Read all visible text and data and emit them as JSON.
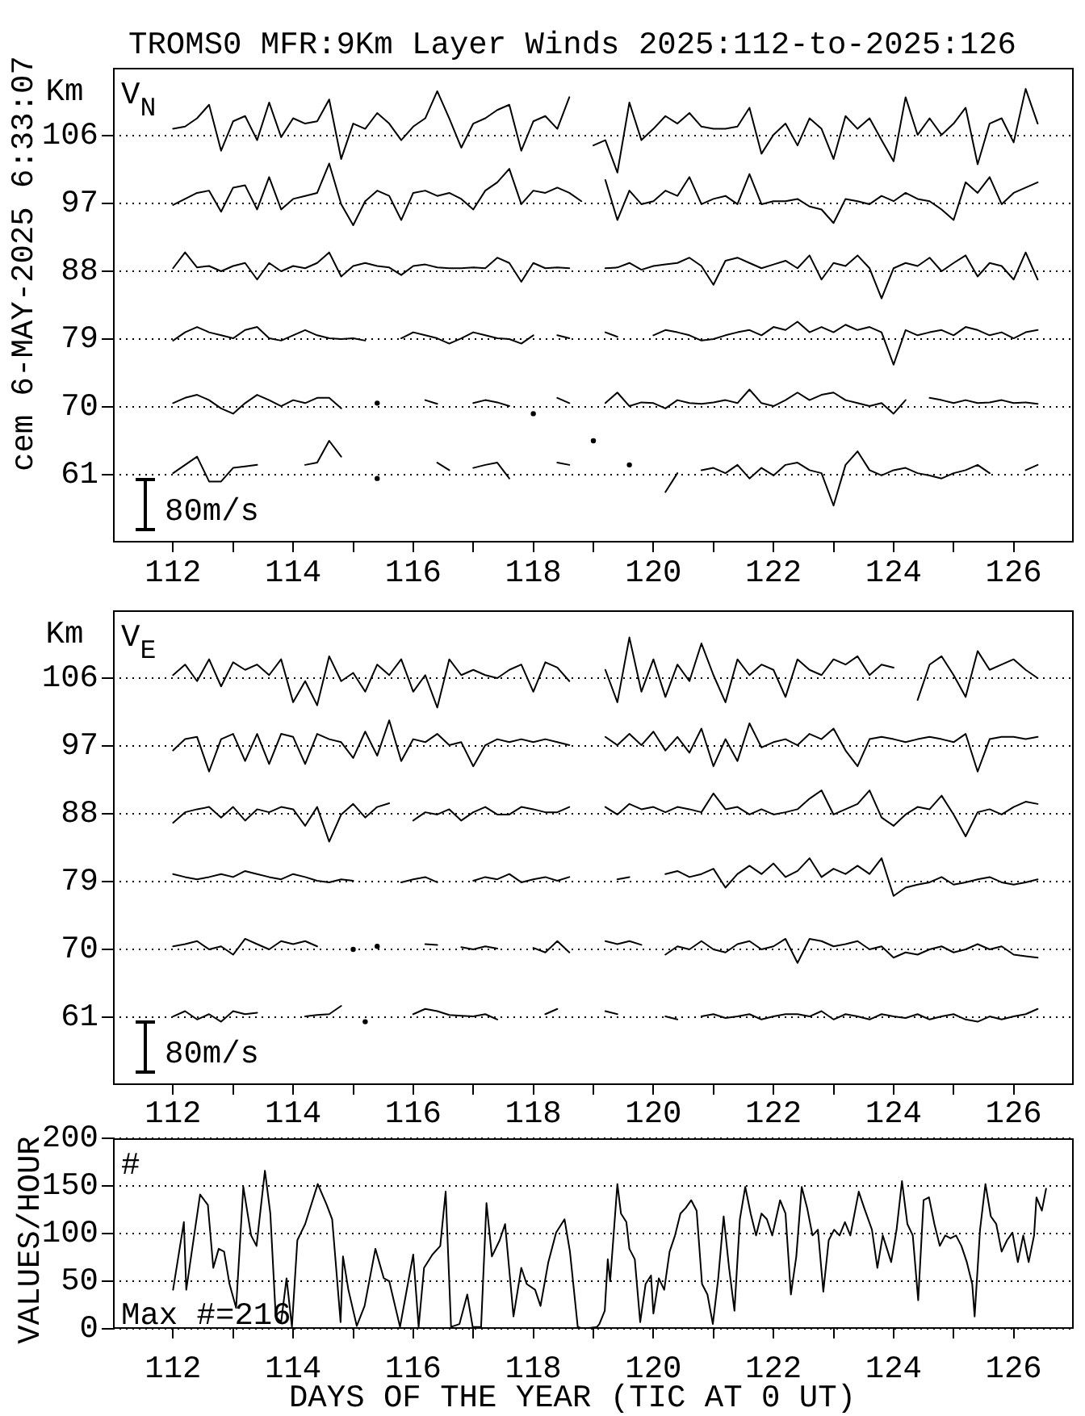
{
  "chart_data": [
    {
      "type": "line",
      "title": "TROMS0 MFR:9Km Layer Winds 2025:112-to-2025:126",
      "ylabel": "Km",
      "annotations": [
        "V$_{N}$",
        "80m/s",
        "cem 6-MAY-2025 6:33:07"
      ],
      "x": [
        112,
        112.2,
        112.4,
        112.6,
        112.8,
        113,
        113.2,
        113.4,
        113.6,
        113.8,
        114,
        114.2,
        114.4,
        114.6,
        114.8,
        115,
        115.2,
        115.4,
        115.6,
        115.8,
        116,
        116.2,
        116.4,
        116.6,
        116.8,
        117,
        117.2,
        117.4,
        117.6,
        117.8,
        118,
        118.2,
        118.4,
        118.6,
        118.8,
        119,
        119.2,
        119.4,
        119.6,
        119.8,
        120,
        120.2,
        120.4,
        120.6,
        120.8,
        121,
        121.2,
        121.4,
        121.6,
        121.8,
        122,
        122.2,
        122.4,
        122.6,
        122.8,
        123,
        123.2,
        123.4,
        123.6,
        123.8,
        124,
        124.2,
        124.4,
        124.6,
        124.8,
        125,
        125.2,
        125.4,
        125.6,
        125.8,
        126,
        126.2,
        126.4
      ],
      "xlim": [
        111,
        127
      ],
      "xticks": [
        112,
        {
          "value": 113,
          "label": null
        },
        114,
        {
          "value": 115,
          "label": null
        },
        116,
        {
          "value": 117,
          "label": null
        },
        118,
        {
          "value": 119,
          "label": null
        },
        120,
        {
          "value": 121,
          "label": null
        },
        122,
        {
          "value": 123,
          "label": null
        },
        124,
        {
          "value": 125,
          "label": null
        },
        126
      ],
      "ylim": [
        52,
        115
      ],
      "yticks": [
        61,
        70,
        79,
        88,
        97,
        106
      ],
      "grid": "y",
      "series": [
        {
          "color": "#000000",
          "values": [
            106.9,
            107.2,
            108.3,
            110.1,
            104.0,
            107.9,
            108.6,
            105.4,
            110.4,
            105.8,
            108.3,
            107.6,
            107.9,
            110.8,
            102.9,
            107.6,
            106.9,
            109.0,
            107.6,
            105.4,
            107.2,
            108.3,
            111.9,
            108.3,
            104.4,
            107.6,
            108.3,
            109.4,
            110.1,
            104.0,
            107.9,
            108.6,
            106.9,
            111.1,
            null,
            104.7,
            105.4,
            101.1,
            110.4,
            105.4,
            106.9,
            108.6,
            107.6,
            109.0,
            107.2,
            106.9,
            106.9,
            107.2,
            109.7,
            103.6,
            106.1,
            107.6,
            104.7,
            108.3,
            106.9,
            102.9,
            108.6,
            106.9,
            108.3,
            105.4,
            102.6,
            111.1,
            106.1,
            108.3,
            106.1,
            107.6,
            109.7,
            102.2,
            107.6,
            108.3,
            105.1,
            112.2,
            107.6
          ]
        },
        {
          "color": "#000000",
          "values": [
            96.8,
            97.6,
            98.4,
            98.7,
            95.9,
            99.1,
            99.4,
            96.2,
            100.5,
            96.2,
            97.6,
            98.0,
            98.4,
            102.3,
            96.9,
            94.1,
            97.3,
            98.7,
            98.0,
            94.8,
            98.4,
            98.7,
            98.0,
            98.4,
            97.6,
            96.2,
            98.7,
            99.8,
            101.6,
            96.9,
            98.7,
            98.4,
            99.1,
            98.4,
            97.3,
            null,
            100.1,
            94.8,
            98.7,
            96.9,
            97.3,
            98.7,
            98.0,
            100.5,
            96.9,
            97.6,
            98.0,
            96.9,
            100.9,
            96.9,
            97.3,
            97.3,
            97.6,
            96.6,
            96.2,
            94.4,
            97.6,
            97.3,
            96.9,
            98.0,
            97.3,
            98.4,
            97.6,
            97.3,
            96.2,
            94.8,
            99.8,
            98.4,
            100.5,
            96.9,
            98.4,
            99.1,
            99.8
          ]
        },
        {
          "color": "#000000",
          "values": [
            88.4,
            90.5,
            88.5,
            88.7,
            88.0,
            88.7,
            89.1,
            86.9,
            89.1,
            88.0,
            88.7,
            88.4,
            89.1,
            90.5,
            87.3,
            88.7,
            89.1,
            88.7,
            88.5,
            87.5,
            88.7,
            88.9,
            88.5,
            88.4,
            88.4,
            88.5,
            88.4,
            89.8,
            89.1,
            86.6,
            89.1,
            88.4,
            88.5,
            88.4,
            null,
            null,
            88.4,
            88.5,
            89.1,
            88.2,
            88.7,
            88.9,
            89.1,
            89.8,
            88.7,
            86.2,
            89.4,
            89.8,
            89.1,
            88.4,
            88.9,
            89.4,
            88.4,
            90.1,
            86.9,
            89.1,
            88.7,
            90.1,
            88.4,
            84.4,
            88.4,
            89.1,
            88.7,
            89.8,
            88.0,
            89.1,
            90.1,
            87.3,
            89.1,
            88.7,
            86.9,
            90.5,
            86.9
          ]
        },
        {
          "color": "#000000",
          "values": [
            78.8,
            79.9,
            80.6,
            79.9,
            79.5,
            79.1,
            80.2,
            80.6,
            79.1,
            78.8,
            79.5,
            80.2,
            79.5,
            79.1,
            79.0,
            79.1,
            78.8,
            null,
            null,
            79.1,
            79.9,
            79.5,
            79.1,
            78.4,
            79.1,
            79.9,
            79.5,
            79.1,
            79.0,
            78.4,
            79.5,
            null,
            79.5,
            79.1,
            null,
            null,
            79.9,
            79.3,
            null,
            null,
            79.5,
            80.2,
            79.9,
            79.5,
            78.8,
            79.0,
            79.5,
            79.9,
            80.2,
            79.5,
            80.6,
            80.2,
            81.3,
            79.9,
            80.6,
            79.9,
            80.9,
            80.2,
            80.6,
            79.9,
            75.6,
            80.2,
            79.5,
            79.9,
            80.2,
            79.5,
            80.6,
            80.2,
            79.5,
            79.9,
            79.1,
            79.9,
            80.2
          ]
        },
        {
          "color": "#000000",
          "values": [
            70.5,
            71.2,
            71.6,
            70.9,
            69.8,
            69.1,
            70.5,
            71.6,
            70.9,
            70.1,
            70.9,
            70.5,
            71.2,
            71.2,
            69.8,
            null,
            null,
            70.5,
            null,
            null,
            null,
            70.9,
            70.4,
            null,
            null,
            70.5,
            70.9,
            70.6,
            70.1,
            null,
            69.1,
            null,
            71.2,
            70.5,
            null,
            null,
            70.5,
            71.9,
            70.1,
            70.6,
            70.5,
            69.8,
            70.9,
            70.5,
            70.4,
            70.6,
            70.9,
            70.5,
            72.3,
            70.5,
            70.1,
            70.9,
            71.9,
            70.9,
            71.6,
            71.9,
            70.9,
            70.5,
            70.1,
            70.5,
            69.1,
            70.9,
            null,
            71.2,
            70.9,
            70.5,
            70.9,
            70.5,
            70.6,
            70.9,
            70.5,
            70.6,
            70.4
          ]
        },
        {
          "color": "#000000",
          "values": [
            61.2,
            62.3,
            63.4,
            60.1,
            60.1,
            61.9,
            62.1,
            62.3,
            null,
            null,
            null,
            62.3,
            62.6,
            65.5,
            63.4,
            null,
            null,
            60.5,
            null,
            null,
            null,
            null,
            62.6,
            61.6,
            null,
            61.9,
            62.3,
            62.6,
            60.5,
            null,
            null,
            null,
            62.6,
            62.3,
            null,
            65.5,
            null,
            null,
            62.3,
            null,
            null,
            58.7,
            61.2,
            null,
            61.6,
            61.9,
            61.2,
            62.3,
            60.5,
            61.9,
            60.9,
            62.3,
            62.6,
            61.6,
            61.2,
            56.9,
            62.3,
            64.1,
            61.6,
            60.9,
            61.6,
            61.9,
            61.2,
            60.9,
            60.5,
            61.2,
            61.6,
            62.3,
            61.2,
            null,
            null,
            61.6,
            62.3
          ]
        }
      ]
    },
    {
      "type": "line",
      "ylabel": "Km",
      "annotations": [
        "V$_{E}$",
        "80m/s"
      ],
      "x": [
        112,
        112.2,
        112.4,
        112.6,
        112.8,
        113,
        113.2,
        113.4,
        113.6,
        113.8,
        114,
        114.2,
        114.4,
        114.6,
        114.8,
        115,
        115.2,
        115.4,
        115.6,
        115.8,
        116,
        116.2,
        116.4,
        116.6,
        116.8,
        117,
        117.2,
        117.4,
        117.6,
        117.8,
        118,
        118.2,
        118.4,
        118.6,
        118.8,
        119,
        119.2,
        119.4,
        119.6,
        119.8,
        120,
        120.2,
        120.4,
        120.6,
        120.8,
        121,
        121.2,
        121.4,
        121.6,
        121.8,
        122,
        122.2,
        122.4,
        122.6,
        122.8,
        123,
        123.2,
        123.4,
        123.6,
        123.8,
        124,
        124.2,
        124.4,
        124.6,
        124.8,
        125,
        125.2,
        125.4,
        125.6,
        125.8,
        126,
        126.2,
        126.4
      ],
      "xlim": [
        111,
        127
      ],
      "xticks": [
        112,
        {
          "value": 113,
          "label": null
        },
        114,
        {
          "value": 115,
          "label": null
        },
        116,
        {
          "value": 117,
          "label": null
        },
        118,
        {
          "value": 119,
          "label": null
        },
        120,
        {
          "value": 121,
          "label": null
        },
        122,
        {
          "value": 123,
          "label": null
        },
        124,
        {
          "value": 125,
          "label": null
        },
        126
      ],
      "ylim": [
        52,
        115
      ],
      "yticks": [
        61,
        70,
        79,
        88,
        97,
        106
      ],
      "grid": "y",
      "series": [
        {
          "color": "#000000",
          "values": [
            106.4,
            107.8,
            105.6,
            108.5,
            104.9,
            108.1,
            107.1,
            107.8,
            106.4,
            108.5,
            102.8,
            105.6,
            102.4,
            108.9,
            105.6,
            106.7,
            104.2,
            107.8,
            106.4,
            108.5,
            104.2,
            106.4,
            102.1,
            108.5,
            106.4,
            107.1,
            106.4,
            106.0,
            107.1,
            107.8,
            104.2,
            108.1,
            107.4,
            105.6,
            null,
            null,
            107.1,
            102.8,
            111.4,
            104.2,
            108.5,
            103.5,
            107.8,
            105.6,
            110.6,
            106.4,
            102.8,
            108.5,
            106.4,
            107.8,
            107.1,
            103.5,
            108.5,
            107.1,
            106.4,
            108.5,
            107.8,
            108.9,
            106.4,
            107.8,
            107.4,
            null,
            103.1,
            107.8,
            108.9,
            106.4,
            103.5,
            109.6,
            107.1,
            107.8,
            108.5,
            107.1,
            106.0
          ]
        },
        {
          "color": "#000000",
          "values": [
            96.4,
            97.9,
            98.2,
            93.6,
            97.9,
            98.6,
            95.0,
            98.6,
            94.6,
            98.6,
            98.2,
            94.6,
            98.6,
            97.9,
            97.5,
            95.4,
            98.9,
            95.7,
            100.4,
            95.0,
            97.9,
            97.5,
            98.6,
            97.1,
            97.5,
            94.3,
            97.1,
            97.9,
            97.5,
            97.9,
            97.5,
            97.9,
            97.5,
            97.1,
            null,
            null,
            98.2,
            97.1,
            98.6,
            97.1,
            98.9,
            96.4,
            98.2,
            96.1,
            99.3,
            94.3,
            97.9,
            95.0,
            100.0,
            96.8,
            97.5,
            97.9,
            97.1,
            98.6,
            97.9,
            99.3,
            96.4,
            94.3,
            97.9,
            98.2,
            97.9,
            97.5,
            97.9,
            98.2,
            97.9,
            97.5,
            98.6,
            93.6,
            97.9,
            98.2,
            98.2,
            97.9,
            98.2
          ]
        },
        {
          "color": "#000000",
          "values": [
            86.8,
            88.2,
            88.6,
            88.9,
            87.5,
            88.9,
            87.1,
            88.6,
            88.2,
            88.9,
            88.6,
            86.4,
            88.9,
            84.3,
            87.9,
            89.3,
            87.5,
            88.9,
            89.4,
            null,
            87.1,
            88.2,
            87.9,
            88.6,
            87.1,
            88.2,
            88.9,
            87.9,
            87.9,
            88.9,
            88.6,
            88.2,
            88.2,
            88.9,
            null,
            null,
            88.9,
            87.9,
            89.3,
            88.6,
            88.9,
            88.2,
            88.9,
            88.6,
            88.2,
            90.7,
            88.6,
            88.9,
            87.9,
            88.6,
            87.9,
            88.2,
            88.6,
            90.0,
            91.1,
            87.9,
            88.6,
            89.3,
            91.1,
            87.5,
            86.4,
            87.9,
            88.9,
            88.6,
            90.4,
            87.9,
            85.0,
            88.2,
            88.6,
            87.9,
            88.9,
            89.6,
            89.3
          ]
        },
        {
          "color": "#000000",
          "values": [
            80.0,
            79.6,
            79.3,
            79.6,
            80.0,
            79.6,
            80.4,
            80.0,
            79.6,
            79.3,
            80.0,
            79.6,
            79.1,
            78.9,
            79.3,
            79.1,
            null,
            null,
            null,
            78.9,
            79.3,
            79.6,
            78.9,
            null,
            null,
            79.1,
            79.6,
            79.3,
            80.0,
            78.9,
            79.3,
            79.6,
            79.1,
            79.6,
            null,
            null,
            null,
            79.3,
            79.6,
            null,
            null,
            80.0,
            80.4,
            79.6,
            80.0,
            80.7,
            78.2,
            80.0,
            81.1,
            80.0,
            81.4,
            79.6,
            80.4,
            82.1,
            79.6,
            80.7,
            80.0,
            81.1,
            80.0,
            82.1,
            77.1,
            78.2,
            78.6,
            78.9,
            79.6,
            78.6,
            78.9,
            79.3,
            79.6,
            78.9,
            78.6,
            78.9,
            79.3
          ]
        },
        {
          "color": "#000000",
          "values": [
            70.4,
            70.7,
            71.1,
            70.0,
            70.4,
            69.3,
            71.4,
            70.7,
            70.0,
            71.1,
            70.7,
            71.1,
            70.4,
            null,
            null,
            70.0,
            null,
            70.4,
            null,
            null,
            null,
            70.7,
            70.6,
            null,
            70.3,
            70.0,
            70.4,
            70.1,
            null,
            null,
            70.2,
            69.6,
            71.1,
            69.6,
            null,
            null,
            71.1,
            70.7,
            71.1,
            70.6,
            null,
            69.3,
            70.4,
            70.0,
            71.1,
            70.0,
            69.6,
            70.7,
            71.1,
            70.0,
            70.4,
            71.4,
            68.2,
            71.4,
            71.1,
            70.4,
            70.7,
            71.1,
            70.0,
            70.4,
            68.9,
            69.6,
            69.3,
            70.0,
            70.4,
            69.6,
            70.0,
            70.7,
            70.0,
            70.4,
            69.3,
            69.1,
            68.9
          ]
        },
        {
          "color": "#000000",
          "values": [
            61.1,
            61.8,
            60.7,
            61.4,
            60.4,
            61.8,
            61.4,
            61.6,
            null,
            null,
            null,
            61.1,
            61.3,
            61.4,
            62.5,
            null,
            60.4,
            null,
            null,
            null,
            61.4,
            62.1,
            61.8,
            61.3,
            61.2,
            61.1,
            61.4,
            60.7,
            null,
            null,
            null,
            61.4,
            62.1,
            null,
            null,
            null,
            61.8,
            61.4,
            null,
            null,
            null,
            61.1,
            60.7,
            null,
            61.1,
            61.4,
            60.9,
            61.1,
            61.4,
            60.7,
            61.1,
            61.4,
            61.4,
            61.1,
            61.8,
            60.7,
            61.4,
            61.1,
            60.7,
            61.4,
            61.1,
            60.9,
            61.4,
            60.7,
            61.1,
            61.4,
            60.7,
            60.4,
            61.1,
            60.7,
            61.1,
            61.4,
            62.1
          ]
        }
      ]
    },
    {
      "type": "line",
      "xlabel": "DAYS OF THE YEAR (TIC AT 0 UT)",
      "ylabel": "VALUES/HOUR",
      "annotations": [
        "#",
        "Max #=216"
      ],
      "x": [
        112.0,
        112.18,
        112.22,
        112.45,
        112.58,
        112.67,
        112.76,
        112.85,
        112.94,
        113.05,
        113.17,
        113.3,
        113.39,
        113.53,
        113.62,
        113.71,
        113.8,
        113.89,
        113.98,
        114.07,
        114.2,
        114.41,
        114.56,
        114.65,
        114.79,
        114.83,
        114.92,
        115.06,
        115.19,
        115.37,
        115.51,
        115.6,
        115.78,
        115.91,
        116.0,
        116.09,
        116.18,
        116.32,
        116.45,
        116.54,
        116.63,
        116.77,
        116.9,
        116.99,
        117.13,
        117.22,
        117.31,
        117.44,
        117.53,
        117.67,
        117.8,
        117.89,
        118.03,
        118.12,
        118.25,
        118.38,
        118.52,
        118.61,
        118.74,
        118.83,
        119.06,
        119.1,
        119.19,
        119.24,
        119.28,
        119.4,
        119.46,
        119.55,
        119.6,
        119.69,
        119.78,
        119.87,
        119.96,
        120.0,
        120.09,
        120.18,
        120.27,
        120.36,
        120.45,
        120.54,
        120.63,
        120.72,
        120.81,
        120.9,
        120.99,
        121.08,
        121.17,
        121.26,
        121.35,
        121.44,
        121.53,
        121.62,
        121.71,
        121.8,
        121.89,
        121.98,
        122.11,
        122.2,
        122.29,
        122.38,
        122.47,
        122.56,
        122.65,
        122.74,
        122.83,
        122.92,
        123.01,
        123.1,
        123.19,
        123.28,
        123.42,
        123.51,
        123.64,
        123.73,
        123.82,
        123.96,
        124.05,
        124.14,
        124.23,
        124.32,
        124.41,
        124.5,
        124.59,
        124.68,
        124.77,
        124.86,
        124.95,
        125.04,
        125.13,
        125.22,
        125.31,
        125.35,
        125.44,
        125.53,
        125.62,
        125.71,
        125.8,
        125.89,
        125.98,
        126.07,
        126.16,
        126.25,
        126.34,
        126.38,
        126.47,
        126.54
      ],
      "values": [
        41,
        112,
        41,
        141,
        130,
        64,
        84,
        81,
        47,
        22,
        149,
        98,
        87,
        166,
        121,
        13,
        7,
        53,
        2,
        93,
        110,
        152,
        130,
        115,
        7,
        76,
        41,
        3,
        24,
        84,
        53,
        50,
        2,
        47,
        78,
        2,
        64,
        78,
        87,
        144,
        2,
        5,
        36,
        2,
        2,
        132,
        76,
        93,
        110,
        13,
        64,
        47,
        41,
        24,
        70,
        101,
        115,
        81,
        2,
        0,
        2,
        5,
        19,
        73,
        50,
        152,
        121,
        112,
        84,
        73,
        7,
        47,
        56,
        16,
        53,
        41,
        81,
        98,
        121,
        127,
        135,
        124,
        47,
        36,
        5,
        53,
        118,
        64,
        19,
        115,
        149,
        121,
        98,
        121,
        115,
        98,
        135,
        121,
        36,
        76,
        149,
        127,
        98,
        104,
        39,
        93,
        104,
        98,
        112,
        98,
        144,
        127,
        104,
        64,
        98,
        70,
        104,
        155,
        110,
        98,
        30,
        135,
        138,
        110,
        87,
        98,
        95,
        98,
        87,
        70,
        47,
        13,
        104,
        152,
        118,
        110,
        81,
        93,
        101,
        70,
        98,
        70,
        98,
        138,
        124,
        147
      ],
      "color": "#000000",
      "xlim": [
        111,
        127
      ],
      "xticks": [
        112,
        {
          "value": 113,
          "label": null
        },
        114,
        {
          "value": 115,
          "label": null
        },
        116,
        {
          "value": 117,
          "label": null
        },
        118,
        {
          "value": 119,
          "label": null
        },
        120,
        {
          "value": 121,
          "label": null
        },
        122,
        {
          "value": 123,
          "label": null
        },
        124,
        {
          "value": 125,
          "label": null
        },
        126
      ],
      "ylim": [
        0,
        200
      ],
      "yticks": [
        0,
        50,
        100,
        150,
        200
      ],
      "grid": "y"
    }
  ]
}
